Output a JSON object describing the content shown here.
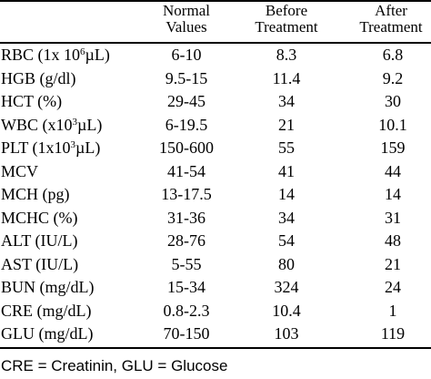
{
  "table": {
    "headers": {
      "normal": [
        "Normal",
        "Values"
      ],
      "before": [
        "Before",
        "Treatment"
      ],
      "after": [
        "After",
        "Treatment"
      ]
    },
    "rows": [
      {
        "parameter": [
          {
            "t": "RBC (1x 10"
          },
          {
            "sup": "6"
          },
          {
            "t": "µL)"
          }
        ],
        "normal": "6-10",
        "before": "8.3",
        "after": "6.8"
      },
      {
        "parameter": [
          {
            "t": "HGB (g/dl)"
          }
        ],
        "normal": "9.5-15",
        "before": "11.4",
        "after": "9.2"
      },
      {
        "parameter": [
          {
            "t": "HCT (%)"
          }
        ],
        "normal": "29-45",
        "before": "34",
        "after": "30"
      },
      {
        "parameter": [
          {
            "t": "WBC (x10"
          },
          {
            "sup": "3"
          },
          {
            "t": "µL)"
          }
        ],
        "normal": "6-19.5",
        "before": "21",
        "after": "10.1"
      },
      {
        "parameter": [
          {
            "t": "PLT (1x10"
          },
          {
            "sup": "3"
          },
          {
            "t": "µL)"
          }
        ],
        "normal": "150-600",
        "before": "55",
        "after": "159"
      },
      {
        "parameter": [
          {
            "t": "MCV"
          }
        ],
        "normal": "41-54",
        "before": "41",
        "after": "44"
      },
      {
        "parameter": [
          {
            "t": "MCH (pg)"
          }
        ],
        "normal": "13-17.5",
        "before": "14",
        "after": "14"
      },
      {
        "parameter": [
          {
            "t": "MCHC (%)"
          }
        ],
        "normal": "31-36",
        "before": "34",
        "after": "31"
      },
      {
        "parameter": [
          {
            "t": "ALT (IU/L)"
          }
        ],
        "normal": "28-76",
        "before": "54",
        "after": "48"
      },
      {
        "parameter": [
          {
            "t": "AST (IU/L)"
          }
        ],
        "normal": "5-55",
        "before": "80",
        "after": "21"
      },
      {
        "parameter": [
          {
            "t": "BUN (mg/dL)"
          }
        ],
        "normal": "15-34",
        "before": "324",
        "after": "24"
      },
      {
        "parameter": [
          {
            "t": "CRE (mg/dL)"
          }
        ],
        "normal": "0.8-2.3",
        "before": "10.4",
        "after": "1"
      },
      {
        "parameter": [
          {
            "t": "GLU (mg/dL)"
          }
        ],
        "normal": "70-150",
        "before": "103",
        "after": "119"
      }
    ]
  },
  "footnote": "CRE = Creatinin, GLU = Glucose"
}
